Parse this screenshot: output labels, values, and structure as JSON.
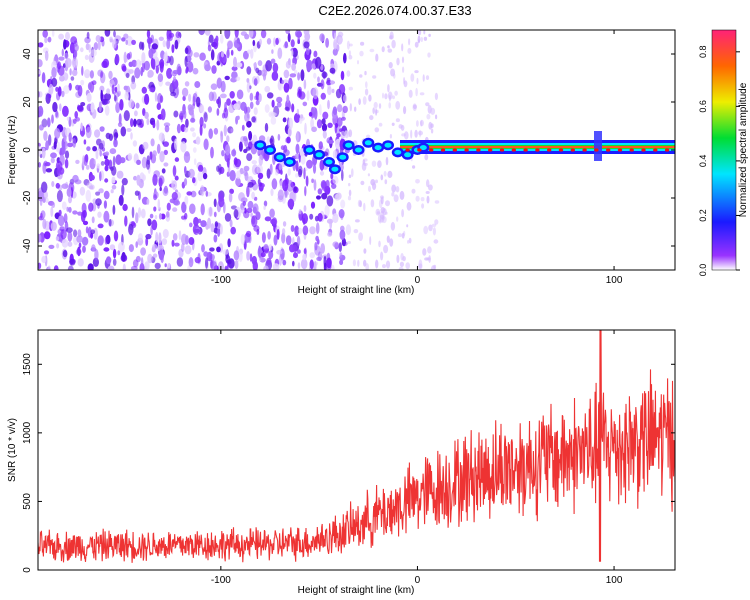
{
  "chart_data": [
    {
      "type": "heatmap",
      "title": "C2E2.2026.074.00.37.E33",
      "xlabel": "Height of straight line (km)",
      "ylabel": "Frequency (Hz)",
      "xlim": [
        -193,
        131
      ],
      "ylim": [
        -50,
        50
      ],
      "xticks": [
        -100,
        0,
        100
      ],
      "yticks": [
        -40,
        -20,
        0,
        20,
        40
      ],
      "colorbar": {
        "label": "Normalized spectral amplitude",
        "range": [
          0.0,
          0.88
        ],
        "ticks": [
          0.0,
          0.2,
          0.4,
          0.6,
          0.8
        ]
      },
      "features": {
        "noise_region_x": [
          -193,
          -35
        ],
        "transition_region_x": [
          -35,
          5
        ],
        "carrier_line_frequency_hz": 0,
        "carrier_start_x": -80,
        "spike_x": 93
      }
    },
    {
      "type": "line",
      "xlabel": "Height of straight line (km)",
      "ylabel": "SNR (10 * v/v)",
      "xlim": [
        -193,
        131
      ],
      "ylim": [
        0,
        1750
      ],
      "xticks": [
        -100,
        0,
        100
      ],
      "yticks": [
        0,
        500,
        1000,
        1500
      ],
      "series": [
        {
          "name": "SNR",
          "color": "#ee3333",
          "x": [
            -193,
            -170,
            -150,
            -130,
            -110,
            -90,
            -70,
            -55,
            -45,
            -35,
            -25,
            -15,
            -5,
            0,
            10,
            20,
            30,
            40,
            50,
            60,
            70,
            80,
            90,
            93,
            96,
            100,
            110,
            120,
            131
          ],
          "y": [
            170,
            175,
            180,
            180,
            185,
            185,
            190,
            205,
            240,
            290,
            370,
            430,
            490,
            540,
            590,
            640,
            700,
            730,
            760,
            790,
            820,
            850,
            880,
            900,
            890,
            900,
            930,
            960,
            1000
          ]
        }
      ]
    }
  ]
}
